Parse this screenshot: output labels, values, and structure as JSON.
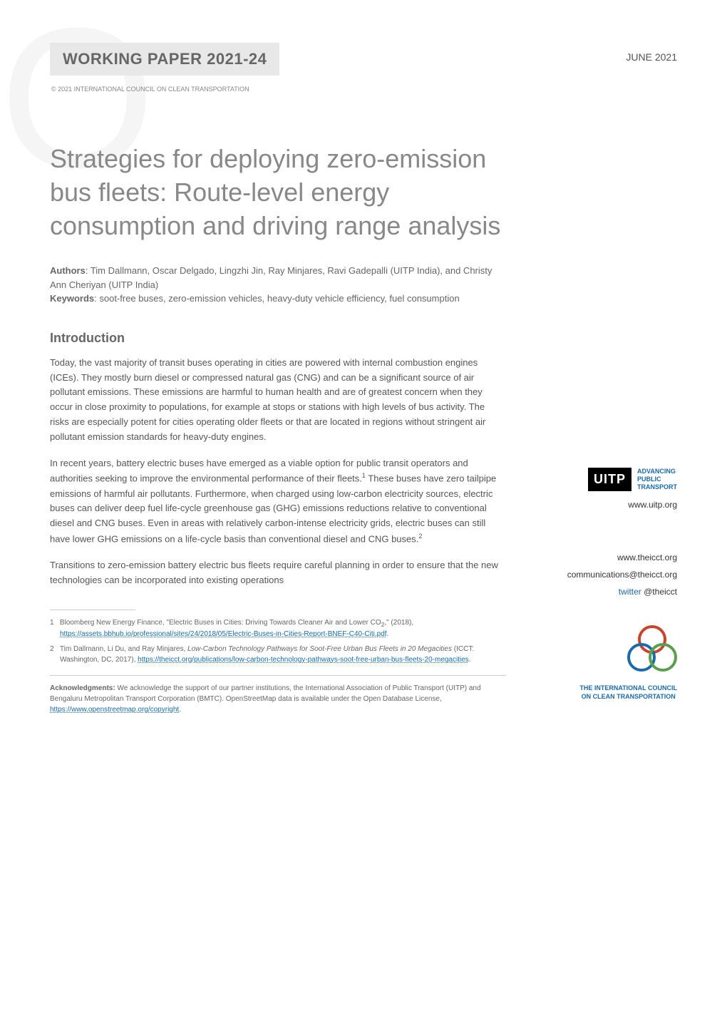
{
  "header": {
    "working_paper_label": "WORKING PAPER 2021-24",
    "copyright": "© 2021 INTERNATIONAL COUNCIL ON CLEAN TRANSPORTATION",
    "date": "JUNE 2021"
  },
  "title": "Strategies for deploying zero-emission bus fleets: Route-level energy consumption and driving range analysis",
  "authors": {
    "label": "Authors",
    "text": ": Tim Dallmann, Oscar Delgado, Lingzhi Jin, Ray Minjares, Ravi Gadepalli (UITP India), and Christy Ann Cheriyan (UITP India)"
  },
  "keywords": {
    "label": "Keywords",
    "text": ": soot-free buses, zero-emission vehicles, heavy-duty vehicle efficiency, fuel consumption"
  },
  "section_heading": "Introduction",
  "paragraphs": {
    "p1": "Today, the vast majority of transit buses operating in cities are powered with internal combustion engines (ICEs). They mostly burn diesel or compressed natural gas (CNG) and can be a significant source of air pollutant emissions. These emissions are harmful to human health and are of greatest concern when they occur in close proximity to populations, for example at stops or stations with high levels of bus activity. The risks are especially potent for cities operating older fleets or that are located in regions without stringent air pollutant emission standards for heavy-duty engines.",
    "p2_a": "In recent years, battery electric buses have emerged as a viable option for public transit operators and authorities seeking to improve the environmental performance of their fleets.",
    "p2_sup1": "1",
    "p2_b": " These buses have zero tailpipe emissions of harmful air pollutants. Furthermore, when charged using low-carbon electricity sources, electric buses can deliver deep fuel life-cycle greenhouse gas (GHG) emissions reductions relative to conventional diesel and CNG buses. Even in areas with relatively carbon-intense electricity grids, electric buses can still have lower GHG emissions on a life-cycle basis than conventional diesel and CNG buses.",
    "p2_sup2": "2",
    "p3": "Transitions to zero-emission battery electric bus fleets require careful planning in order to ensure that the new technologies can be incorporated into existing operations"
  },
  "footnotes": {
    "f1_num": "1",
    "f1_text": "Bloomberg New Energy Finance, \"Electric Buses in Cities: Driving Towards Cleaner Air and Lower CO",
    "f1_sub": "2",
    "f1_text2": ",\" (2018), ",
    "f1_link": "https://assets.bbhub.io/professional/sites/24/2018/05/Electric-Buses-in-Cities-Report-BNEF-C40-Citi.pdf",
    "f1_end": ".",
    "f2_num": "2",
    "f2_text": "Tim Dallmann, Li Du, and Ray Minjares, ",
    "f2_italic": "Low-Carbon Technology Pathways for Soot-Free Urban Bus Fleets in 20 Megacities",
    "f2_text2": " (ICCT: Washington, DC, 2017), ",
    "f2_link": "https://theicct.org/publications/low-carbon-technology-pathways-soot-free-urban-bus-fleets-20-megacities",
    "f2_end": "."
  },
  "acknowledgments": {
    "label": "Acknowledgments:",
    "text": " We acknowledge the support of our partner institutions, the International Association of Public Transport (UITP) and Bengaluru Metropolitan Transport Corporation (BMTC). OpenStreetMap data is available under the Open Database License, ",
    "link": "https://www.openstreetmap.org/copyright",
    "end": "."
  },
  "sidebar": {
    "uitp_box": "UITP",
    "uitp_line1": "ADVANCING",
    "uitp_line2": "PUBLIC",
    "uitp_line3": "TRANSPORT",
    "uitp_url": "www.uitp.org",
    "icct_url": "www.theicct.org",
    "icct_email": "communications@theicct.org",
    "twitter_label": "twitter ",
    "twitter_handle": "@theicct",
    "icct_name_line1": "THE INTERNATIONAL COUNCIL",
    "icct_name_line2": "ON CLEAN TRANSPORTATION"
  },
  "colors": {
    "link_blue": "#1a6ba8",
    "text_gray": "#666666",
    "body_gray": "#555555",
    "circle_red": "#c8442e",
    "circle_blue": "#1a6ba8",
    "circle_green": "#5a9e4e"
  }
}
